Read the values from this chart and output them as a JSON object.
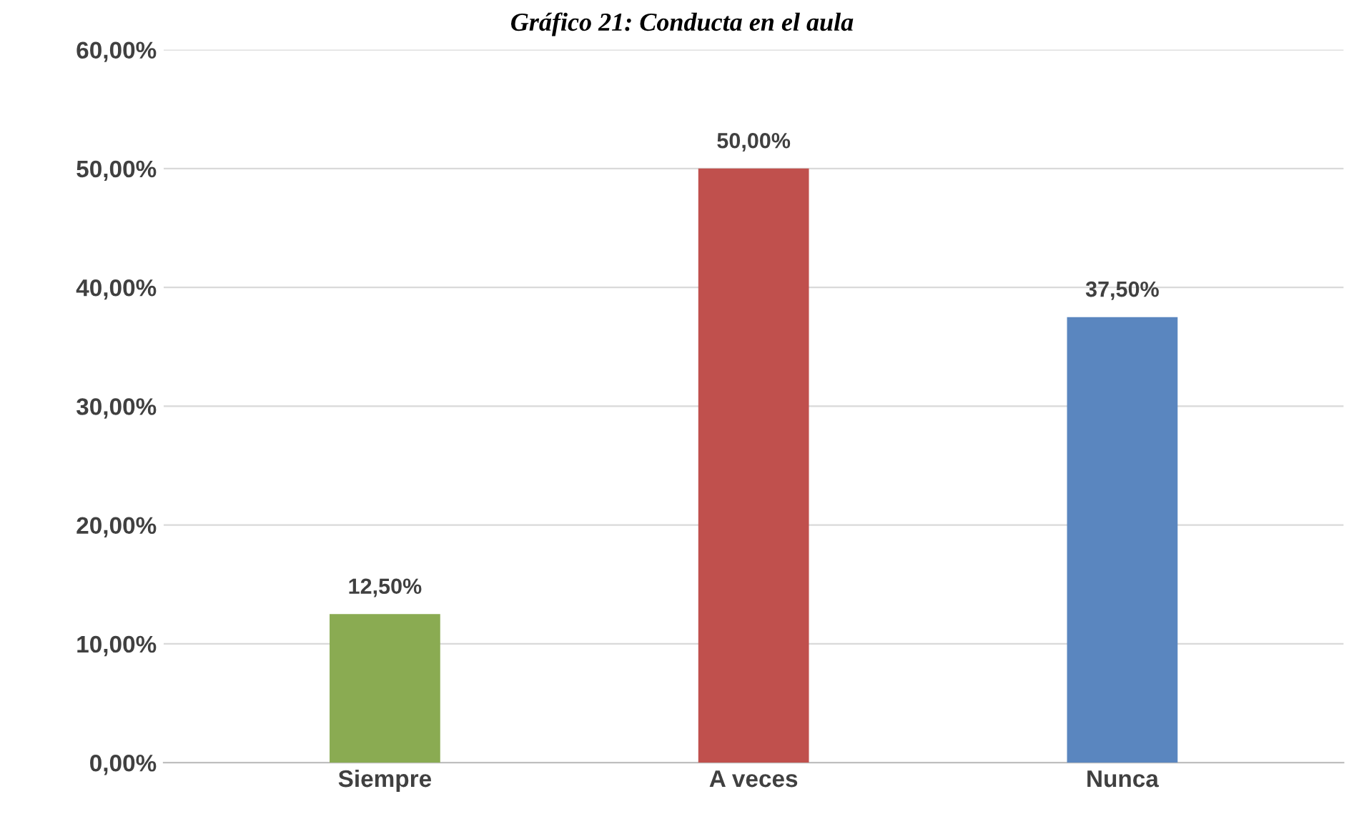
{
  "chart_data": {
    "type": "bar",
    "title": "Gráfico 21: Conducta en el aula",
    "categories": [
      "Siempre",
      "A veces",
      "Nunca"
    ],
    "values": [
      12.5,
      50,
      37.5
    ],
    "colors": [
      "#8aab52",
      "#c0504d",
      "#5a86bf"
    ],
    "value_labels": [
      "12,50%",
      "50,00%",
      "37,50%"
    ],
    "ylim": [
      0,
      60
    ],
    "yticks": [
      {
        "value": 0,
        "label": "0,00%"
      },
      {
        "value": 10,
        "label": "10,00%"
      },
      {
        "value": 20,
        "label": "20,00%"
      },
      {
        "value": 30,
        "label": "30,00%"
      },
      {
        "value": 40,
        "label": "40,00%"
      },
      {
        "value": 50,
        "label": "50,00%"
      },
      {
        "value": 60,
        "label": "60,00%"
      }
    ],
    "grid": "y",
    "legend": false
  }
}
